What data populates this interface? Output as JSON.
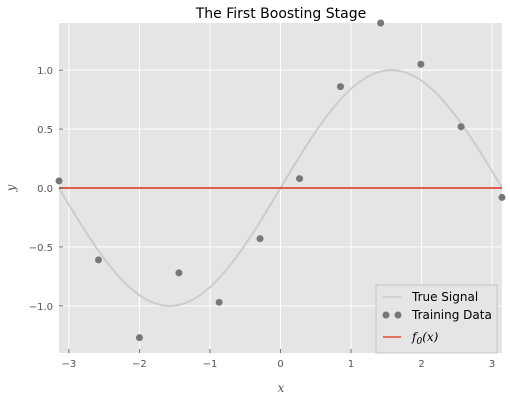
{
  "chart_data": {
    "type": "scatter",
    "title": "The First Boosting Stage",
    "xlabel": "x",
    "ylabel": "y",
    "xlim": [
      -3.14,
      3.14
    ],
    "ylim": [
      -1.4,
      1.4
    ],
    "grid": true,
    "legend_position": "bottom-right",
    "xticks": [
      -3,
      -2,
      -1,
      0,
      1,
      2,
      3
    ],
    "xtick_labels": [
      "−3",
      "−2",
      "−1",
      "0",
      "1",
      "2",
      "3"
    ],
    "yticks": [
      1.0,
      0.5,
      0.0,
      -0.5,
      -1.0
    ],
    "ytick_labels": [
      "1.0",
      "0.5",
      "0.0",
      "−0.5",
      "−1.0"
    ],
    "series": [
      {
        "name": "True Signal",
        "kind": "line",
        "function": "sin(x)",
        "color": "#cccccc"
      },
      {
        "name": "Training Data",
        "kind": "scatter",
        "color": "#777777",
        "x": [
          -3.14,
          -2.58,
          -2.0,
          -1.44,
          -0.87,
          -0.29,
          0.27,
          0.85,
          1.42,
          1.99,
          2.56,
          3.14
        ],
        "y": [
          0.06,
          -0.61,
          -1.27,
          -0.72,
          -0.97,
          -0.43,
          0.08,
          0.86,
          1.4,
          1.05,
          0.52,
          -0.08
        ]
      },
      {
        "name": "f0(x)",
        "kind": "line",
        "color": "#e24a33",
        "x": [
          -3.14,
          3.14
        ],
        "y": [
          0.0,
          0.0
        ]
      }
    ],
    "legend": [
      {
        "label": "True Signal"
      },
      {
        "label": "Training Data"
      },
      {
        "label_prefix": "f",
        "label_sub": "0",
        "label_suffix": "(x)"
      }
    ]
  }
}
